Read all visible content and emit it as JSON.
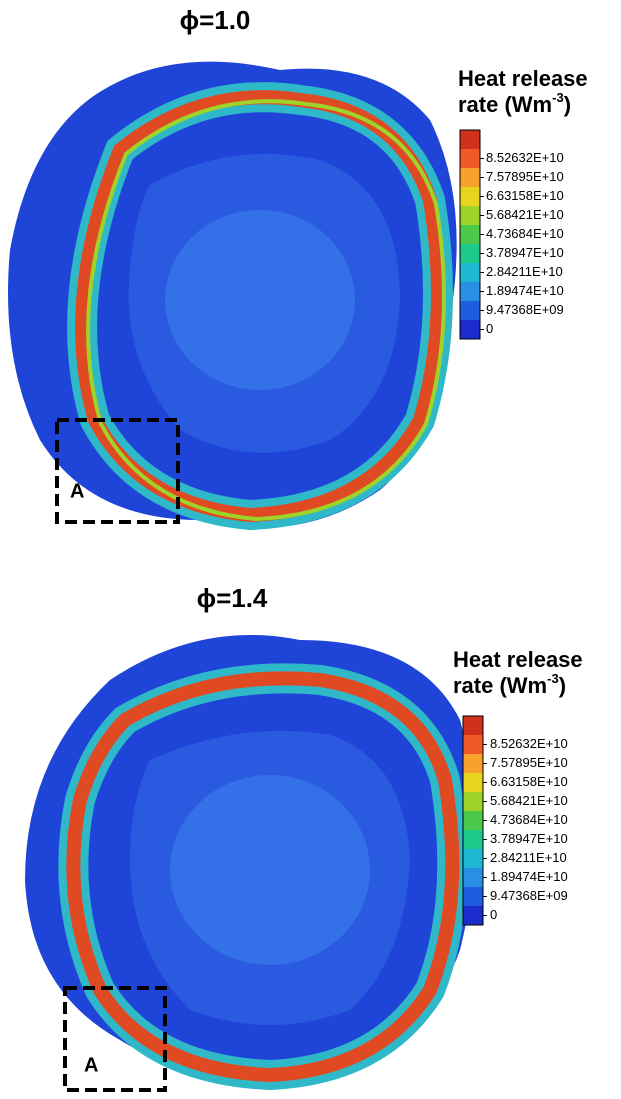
{
  "panels": [
    {
      "title": "ϕ=1.0",
      "legend_title": {
        "line1": "Heat release",
        "line2": "rate (Wm",
        "superscript": "-3",
        "close": ")"
      },
      "legend_labels": [
        "8.52632E+10",
        "7.57895E+10",
        "6.63158E+10",
        "5.68421E+10",
        "4.73684E+10",
        "3.78947E+10",
        "2.84211E+10",
        "1.89474E+10",
        "9.47368E+09",
        "0"
      ],
      "inset_label": "A"
    },
    {
      "title": "ϕ=1.4",
      "legend_title": {
        "line1": "Heat release",
        "line2": "rate (Wm",
        "superscript": "-3",
        "close": ")"
      },
      "legend_labels": [
        "8.52632E+10",
        "7.57895E+10",
        "6.63158E+10",
        "5.68421E+10",
        "4.73684E+10",
        "3.78947E+10",
        "2.84211E+10",
        "1.89474E+10",
        "9.47368E+09",
        "0"
      ],
      "inset_label": "A"
    }
  ],
  "colorbar_colors": [
    "#d0301c",
    "#f05a28",
    "#f7a02a",
    "#e6d41e",
    "#9ed42a",
    "#4cc84a",
    "#1ec98c",
    "#1eb8d2",
    "#2a8ee6",
    "#1f5de0",
    "#1a2ccc"
  ]
}
